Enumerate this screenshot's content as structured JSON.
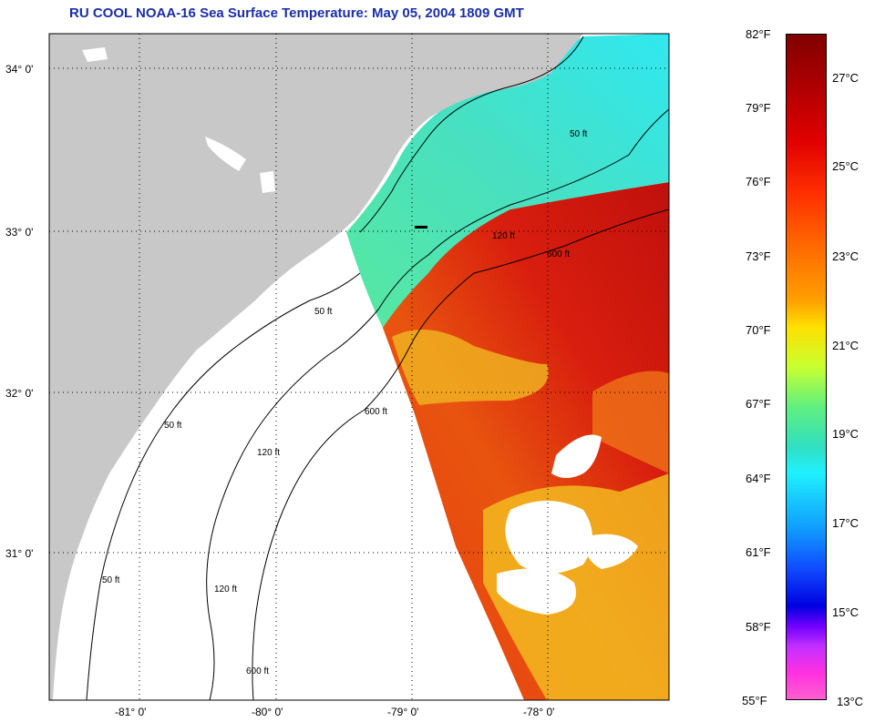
{
  "title": "RU COOL  NOAA-16  Sea Surface Temperature:  May 05, 2004 1809 GMT",
  "map": {
    "lat_labels": [
      "34° 0'",
      "33° 0'",
      "32° 0'",
      "31° 0'"
    ],
    "lon_labels": [
      "-81° 0'",
      "-80° 0'",
      "-79° 0'",
      "-78° 0'"
    ],
    "contour_labels": [
      "50 ft",
      "120 ft",
      "600 ft"
    ],
    "colors": {
      "land": "#c8c8c8",
      "ocean_no_data": "#ffffff",
      "warm_core": "#e83a10",
      "shelf": "#3fe0c0"
    }
  },
  "colorbar": {
    "fahrenheit": [
      "82°F",
      "79°F",
      "76°F",
      "73°F",
      "70°F",
      "67°F",
      "64°F",
      "61°F",
      "58°F",
      "55°F"
    ],
    "celsius": [
      "27°C",
      "25°C",
      "23°C",
      "21°C",
      "19°C",
      "17°C",
      "15°C",
      "13°C"
    ]
  }
}
